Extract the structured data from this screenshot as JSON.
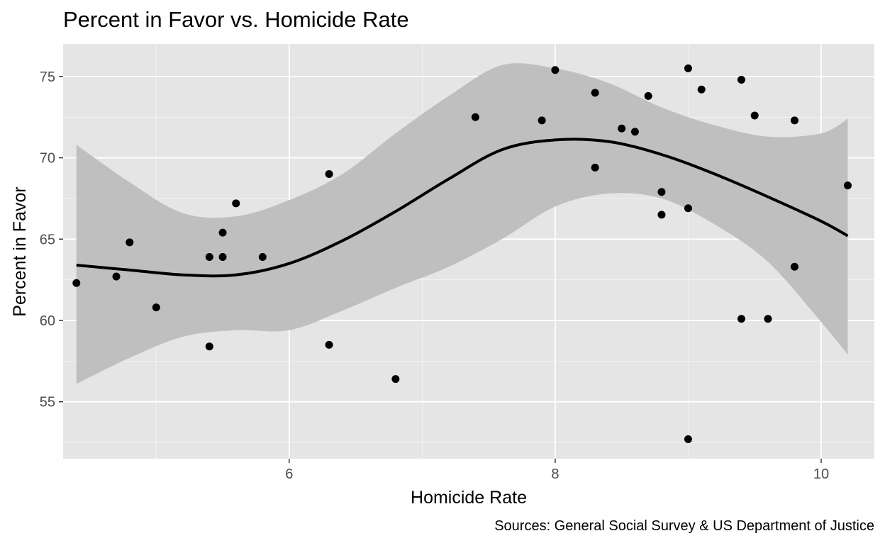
{
  "chart_data": {
    "type": "scatter",
    "title": "Percent in Favor vs. Homicide Rate",
    "xlabel": "Homicide Rate",
    "ylabel": "Percent in Favor",
    "caption": "Sources: General Social Survey & US Department of Justice",
    "xlim": [
      4.3,
      10.4
    ],
    "ylim": [
      51.5,
      77
    ],
    "x_ticks": [
      6,
      8,
      10
    ],
    "x_tick_labels": [
      "6",
      "8",
      "10"
    ],
    "y_ticks": [
      55,
      60,
      65,
      70,
      75
    ],
    "y_tick_labels": [
      "55",
      "60",
      "65",
      "70",
      "75"
    ],
    "grid": true,
    "points": [
      {
        "x": 4.4,
        "y": 62.3
      },
      {
        "x": 4.7,
        "y": 62.7
      },
      {
        "x": 4.8,
        "y": 64.8
      },
      {
        "x": 5.0,
        "y": 60.8
      },
      {
        "x": 5.4,
        "y": 63.9
      },
      {
        "x": 5.4,
        "y": 58.4
      },
      {
        "x": 5.5,
        "y": 65.4
      },
      {
        "x": 5.5,
        "y": 63.9
      },
      {
        "x": 5.6,
        "y": 67.2
      },
      {
        "x": 5.8,
        "y": 63.9
      },
      {
        "x": 6.3,
        "y": 69.0
      },
      {
        "x": 6.3,
        "y": 58.5
      },
      {
        "x": 6.8,
        "y": 56.4
      },
      {
        "x": 7.4,
        "y": 72.5
      },
      {
        "x": 7.9,
        "y": 72.3
      },
      {
        "x": 8.0,
        "y": 75.4
      },
      {
        "x": 8.3,
        "y": 74.0
      },
      {
        "x": 8.3,
        "y": 69.4
      },
      {
        "x": 8.5,
        "y": 71.8
      },
      {
        "x": 8.6,
        "y": 71.6
      },
      {
        "x": 8.7,
        "y": 73.8
      },
      {
        "x": 8.8,
        "y": 67.9
      },
      {
        "x": 8.8,
        "y": 66.5
      },
      {
        "x": 9.0,
        "y": 75.5
      },
      {
        "x": 9.0,
        "y": 66.9
      },
      {
        "x": 9.0,
        "y": 52.7
      },
      {
        "x": 9.1,
        "y": 74.2
      },
      {
        "x": 9.4,
        "y": 74.8
      },
      {
        "x": 9.4,
        "y": 60.1
      },
      {
        "x": 9.5,
        "y": 72.6
      },
      {
        "x": 9.6,
        "y": 60.1
      },
      {
        "x": 9.8,
        "y": 72.3
      },
      {
        "x": 9.8,
        "y": 63.3
      },
      {
        "x": 10.2,
        "y": 68.3
      }
    ],
    "smooth": {
      "x": [
        4.4,
        4.8,
        5.2,
        5.6,
        6.0,
        6.4,
        6.8,
        7.2,
        7.6,
        8.0,
        8.4,
        8.8,
        9.2,
        9.6,
        10.0,
        10.2
      ],
      "y": [
        63.4,
        63.1,
        62.8,
        62.8,
        63.5,
        64.9,
        66.7,
        68.7,
        70.5,
        71.1,
        71.0,
        70.2,
        69.0,
        67.6,
        66.1,
        65.2
      ],
      "lower": [
        56.1,
        57.7,
        59.0,
        59.4,
        59.4,
        60.6,
        62.0,
        63.3,
        65.0,
        67.0,
        67.8,
        67.5,
        65.9,
        63.6,
        59.9,
        57.9
      ],
      "upper": [
        70.8,
        68.5,
        66.6,
        66.4,
        67.4,
        69.0,
        71.5,
        73.8,
        75.7,
        75.5,
        74.6,
        73.1,
        72.0,
        71.3,
        71.5,
        72.4
      ]
    },
    "colors": {
      "panel": "#e5e5e5",
      "grid_major": "#ffffff",
      "ribbon": "#bfbfbf",
      "point": "#000000",
      "line": "#000000",
      "tick_text": "#4d4d4d",
      "title_text": "#000000"
    }
  }
}
